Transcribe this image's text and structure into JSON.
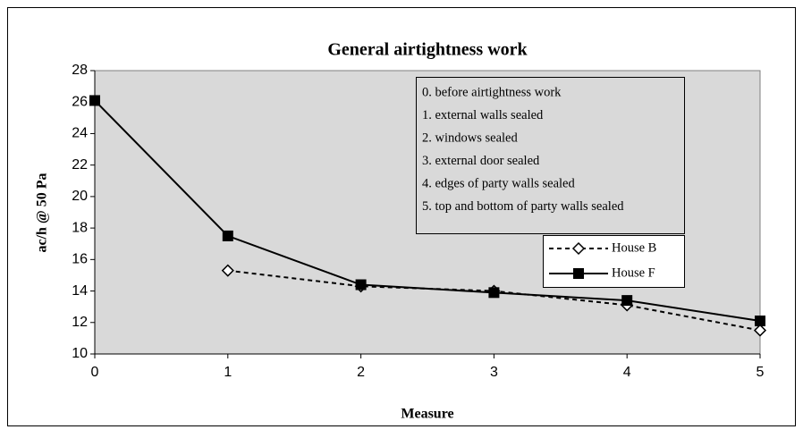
{
  "chart_data": {
    "type": "line",
    "title": "General airtightness work",
    "xlabel": "Measure",
    "ylabel": "ac/h @ 50 Pa",
    "x": [
      0,
      1,
      2,
      3,
      4,
      5
    ],
    "xlim": [
      0,
      5
    ],
    "xticks": [
      0,
      1,
      2,
      3,
      4,
      5
    ],
    "ylim": [
      10,
      28
    ],
    "yticks": [
      10,
      12,
      14,
      16,
      18,
      20,
      22,
      24,
      26,
      28
    ],
    "annotations": [
      "0. before airtightness work",
      "1. external walls sealed",
      "2. windows sealed",
      "3. external door sealed",
      "4. edges of party walls sealed",
      "5. top and bottom of party walls sealed"
    ],
    "series": [
      {
        "name": "House B",
        "color": "#000000",
        "line_style": "dashed",
        "marker": "diamond",
        "values": [
          null,
          15.3,
          14.3,
          14.0,
          13.1,
          11.5
        ]
      },
      {
        "name": "House F",
        "color": "#000000",
        "line_style": "solid",
        "marker": "square",
        "values": [
          26.1,
          17.5,
          14.4,
          13.9,
          13.4,
          12.1
        ]
      }
    ]
  }
}
